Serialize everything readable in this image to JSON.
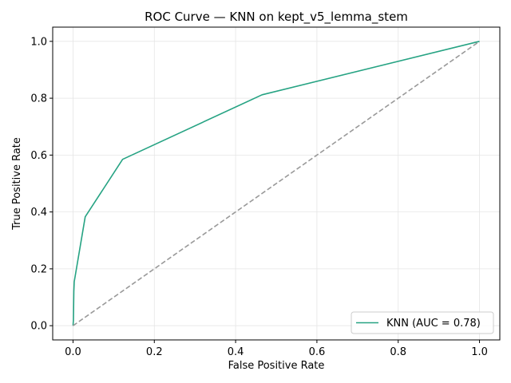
{
  "chart_data": {
    "type": "line",
    "title": "ROC Curve — KNN on kept_v5_lemma_stem",
    "xlabel": "False Positive Rate",
    "ylabel": "True Positive Rate",
    "xlim": [
      -0.05,
      1.05
    ],
    "ylim": [
      -0.05,
      1.05
    ],
    "xticks": [
      0.0,
      0.2,
      0.4,
      0.6,
      0.8,
      1.0
    ],
    "yticks": [
      0.0,
      0.2,
      0.4,
      0.6,
      0.8,
      1.0
    ],
    "xtick_labels": [
      "0.0",
      "0.2",
      "0.4",
      "0.6",
      "0.8",
      "1.0"
    ],
    "ytick_labels": [
      "0.0",
      "0.2",
      "0.4",
      "0.6",
      "0.8",
      "1.0"
    ],
    "grid": true,
    "legend_position": "lower-right",
    "series": [
      {
        "name": "KNN (AUC = 0.78)",
        "color": "#26a383",
        "style": "solid",
        "x": [
          0.0,
          0.001,
          0.002,
          0.003,
          0.03,
          0.122,
          0.465,
          1.0
        ],
        "y": [
          0.0,
          0.02,
          0.12,
          0.155,
          0.383,
          0.585,
          0.812,
          1.0
        ]
      },
      {
        "color": "#999999",
        "style": "dashed",
        "x": [
          0.0,
          1.0
        ],
        "y": [
          0.0,
          1.0
        ]
      }
    ]
  }
}
